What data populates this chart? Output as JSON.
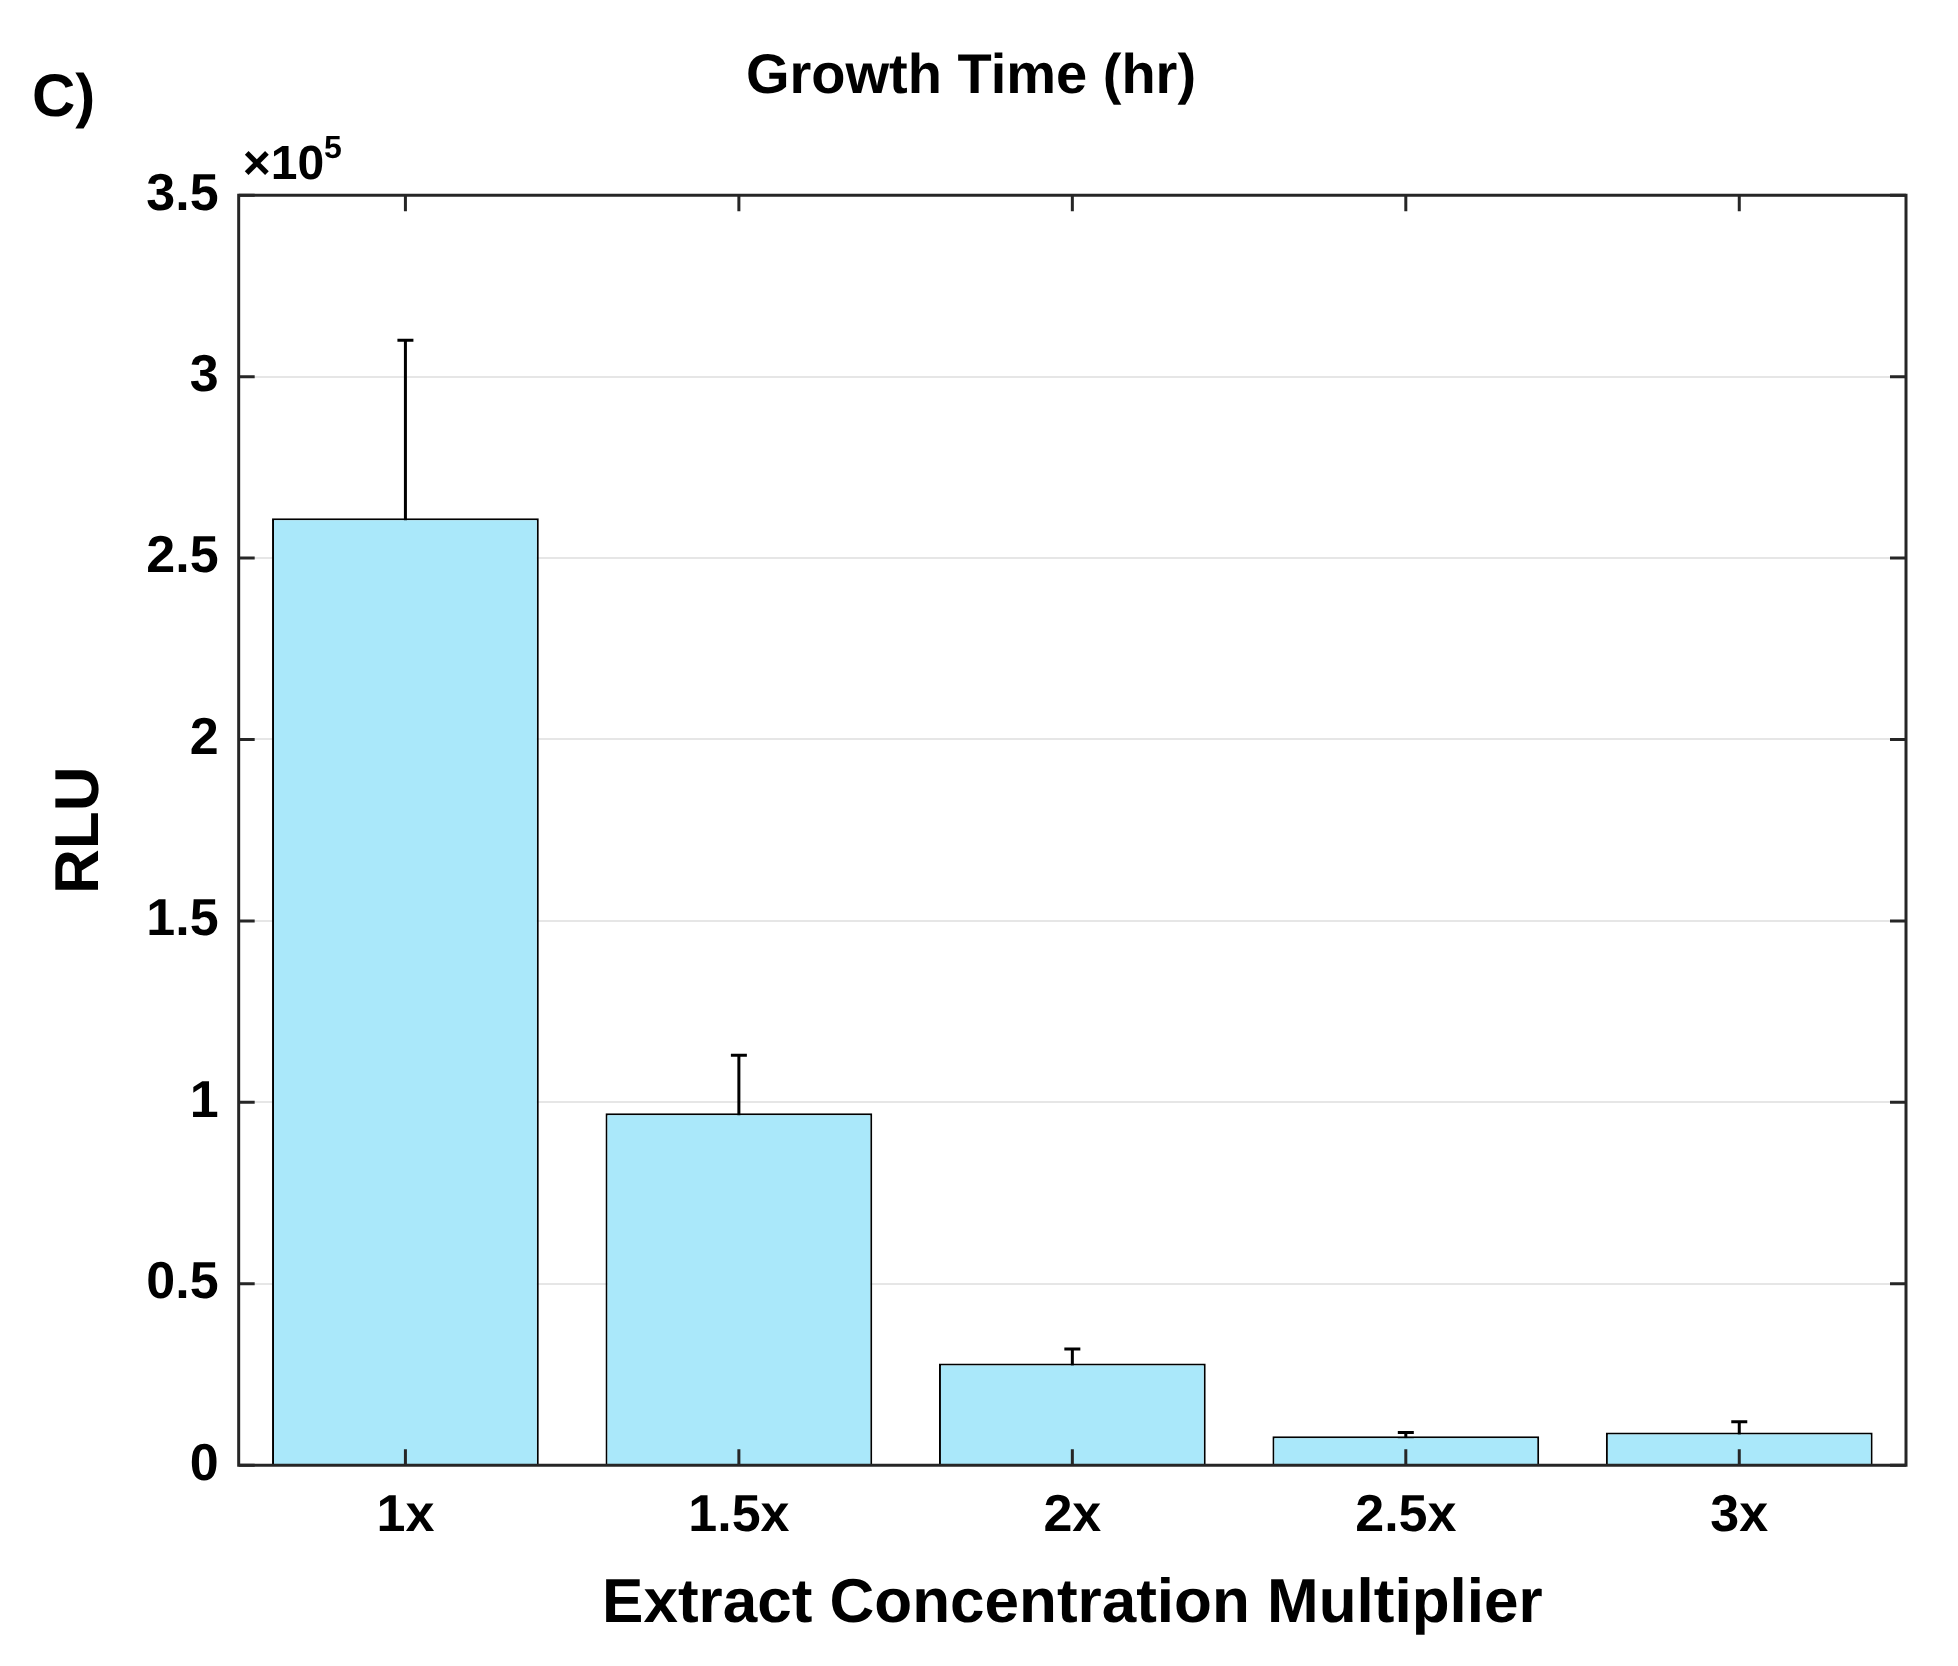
{
  "chart_data": {
    "type": "bar",
    "title": "Growth Time (hr)",
    "xlabel": "Extract Concentration Multiplier",
    "ylabel": "RLU",
    "categories": [
      "1x",
      "1.5x",
      "2x",
      "2.5x",
      "3x"
    ],
    "values": [
      2.61,
      0.97,
      0.28,
      0.08,
      0.09
    ],
    "errors": [
      0.49,
      0.16,
      0.04,
      0.01,
      0.03
    ],
    "color": "#aae8fa",
    "ylim": [
      0,
      3.5
    ],
    "yticks": [
      0,
      0.5,
      1,
      1.5,
      2,
      2.5,
      3,
      3.5
    ],
    "grid": "y",
    "annotations": [
      "C)",
      "×10$^{5}$"
    ]
  }
}
